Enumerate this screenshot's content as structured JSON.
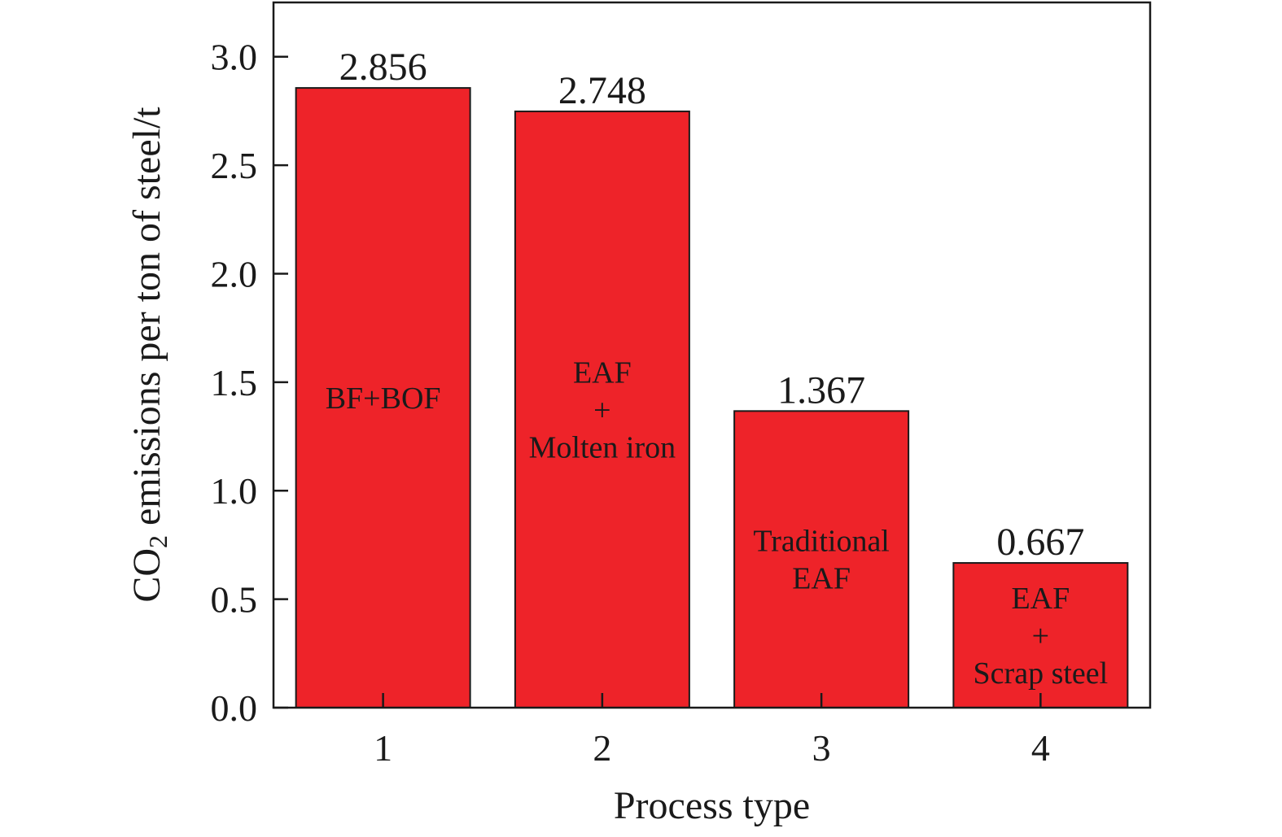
{
  "chart_data": {
    "type": "bar",
    "categories": [
      "1",
      "2",
      "3",
      "4"
    ],
    "values": [
      2.856,
      2.748,
      1.367,
      0.667
    ],
    "value_labels": [
      "2.856",
      "2.748",
      "1.367",
      "0.667"
    ],
    "bar_labels": [
      [
        "BF+BOF"
      ],
      [
        "EAF",
        "+",
        "Molten iron"
      ],
      [
        "Traditional",
        "EAF"
      ],
      [
        "EAF",
        "+",
        "Scrap steel"
      ]
    ],
    "xlabel": "Process type",
    "ylabel": {
      "prefix": "CO",
      "subscript": "2",
      "rest": " emissions per ton of steel/t"
    },
    "ylim": [
      0,
      3.25
    ],
    "yticks": [
      0.0,
      0.5,
      1.0,
      1.5,
      2.0,
      2.5,
      3.0
    ],
    "ytick_labels": [
      "0.0",
      "0.5",
      "1.0",
      "1.5",
      "2.0",
      "2.5",
      "3.0"
    ],
    "grid": false,
    "bar_color": "#ee2329",
    "edge_color": "#1a1a1a"
  }
}
